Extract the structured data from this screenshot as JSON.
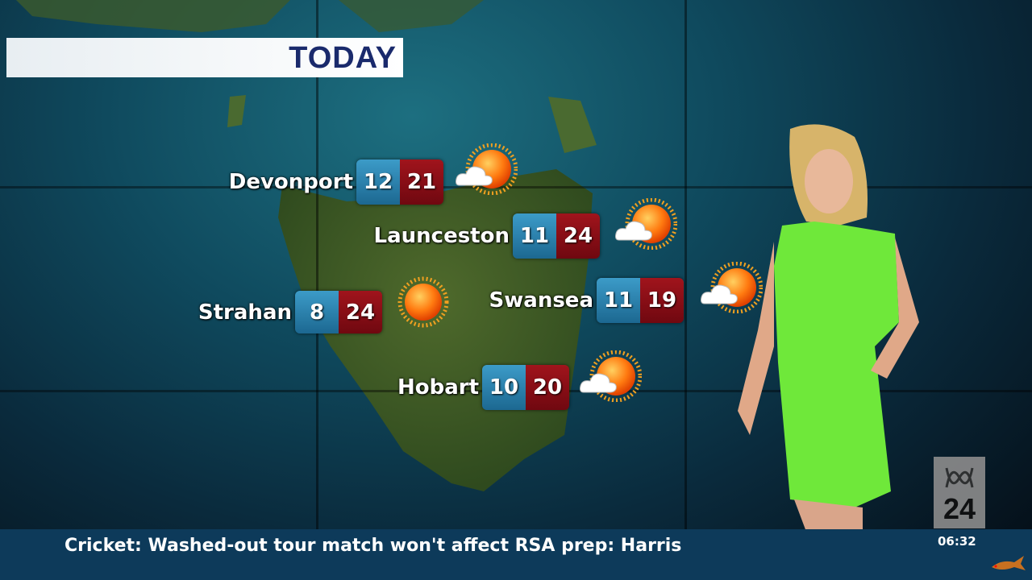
{
  "banner": {
    "title": "TODAY"
  },
  "forecasts": [
    {
      "city": "Devonport",
      "min": "12",
      "max": "21",
      "condition": "partly-cloudy-icon"
    },
    {
      "city": "Launceston",
      "min": "11",
      "max": "24",
      "condition": "partly-cloudy-icon"
    },
    {
      "city": "Strahan",
      "min": "8",
      "max": "24",
      "condition": "sunny-icon"
    },
    {
      "city": "Swansea",
      "min": "11",
      "max": "19",
      "condition": "partly-cloudy-icon"
    },
    {
      "city": "Hobart",
      "min": "10",
      "max": "20",
      "condition": "partly-cloudy-icon"
    }
  ],
  "ticker": {
    "headline": "Cricket: Washed-out tour match won't affect RSA prep: Harris",
    "time": "06:32"
  },
  "channel": {
    "logo": "ABC 24"
  },
  "colors": {
    "min_box": "#2a84b0",
    "max_box": "#8a0e16",
    "ticker_bg": "#0d3a5a",
    "banner_text": "#1a2a6c"
  }
}
